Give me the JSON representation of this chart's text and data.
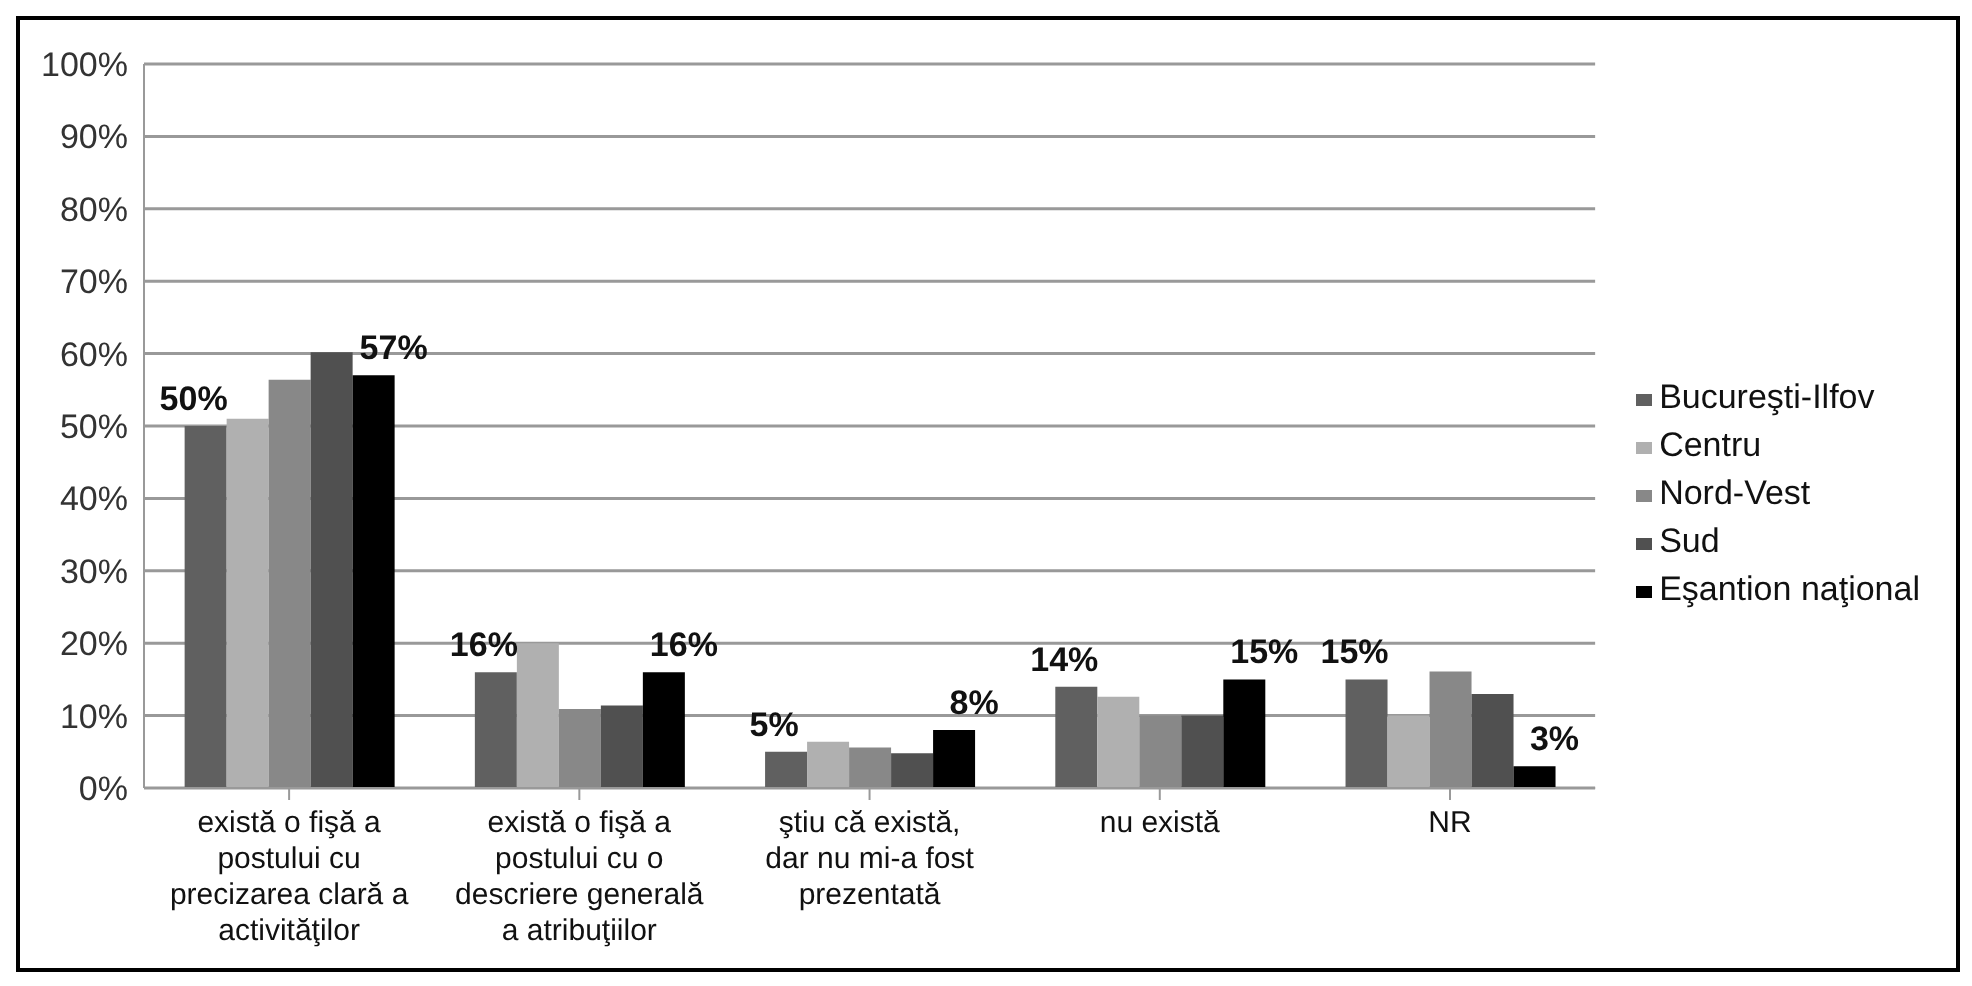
{
  "chart_data": {
    "type": "bar",
    "categories": [
      "există o fişă a postului cu precizarea clară a activităţilor",
      "există o fişă a postului cu o descriere generală a atribuţiilor",
      "ştiu că există, dar nu mi-a fost prezentată",
      "nu există",
      "NR"
    ],
    "series": [
      {
        "name": "Bucureşti-Ilfov",
        "color": "#606060",
        "values": [
          50,
          16,
          5,
          14,
          15
        ],
        "value_labels": [
          "50%",
          "16%",
          "5%",
          "14%",
          "15%"
        ]
      },
      {
        "name": "Centru",
        "color": "#b0b0b0",
        "values": [
          51,
          20,
          6.4,
          12.6,
          10
        ]
      },
      {
        "name": "Nord-Vest",
        "color": "#888888",
        "values": [
          56.4,
          10.9,
          5.6,
          10,
          16.1
        ]
      },
      {
        "name": "Sud",
        "color": "#505050",
        "values": [
          60.2,
          11.4,
          4.8,
          10,
          13
        ]
      },
      {
        "name": "Eşantion naţional",
        "color": "#000000",
        "values": [
          57,
          16,
          8,
          15,
          3
        ],
        "value_labels": [
          "57%",
          "16%",
          "8%",
          "15%",
          "3%"
        ]
      }
    ],
    "ylim": [
      0,
      100
    ],
    "yticks": [
      {
        "value": 0,
        "label": "0%"
      },
      {
        "value": 10,
        "label": "10%"
      },
      {
        "value": 20,
        "label": "20%"
      },
      {
        "value": 30,
        "label": "30%"
      },
      {
        "value": 40,
        "label": "40%"
      },
      {
        "value": 50,
        "label": "50%"
      },
      {
        "value": 60,
        "label": "60%"
      },
      {
        "value": 70,
        "label": "70%"
      },
      {
        "value": 80,
        "label": "80%"
      },
      {
        "value": 90,
        "label": "90%"
      },
      {
        "value": 100,
        "label": "100%"
      }
    ],
    "grid": "y",
    "legend": "right"
  }
}
